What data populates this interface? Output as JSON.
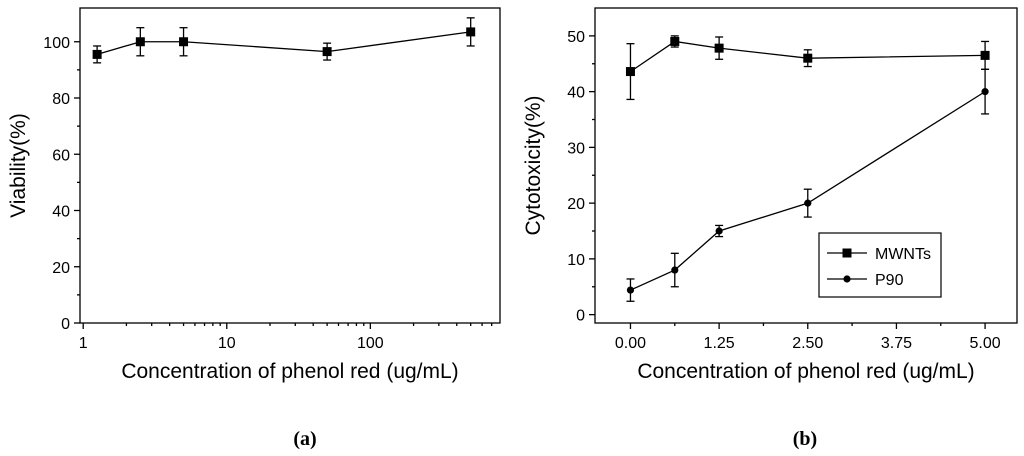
{
  "chart_data": [
    {
      "type": "line",
      "panel_label": "(a)",
      "xscale": "log",
      "xlabel": "Concentration of phenol red (ug/mL)",
      "ylabel": "Viability(%)",
      "xlim": [
        0.95,
        800
      ],
      "ylim": [
        0,
        112
      ],
      "x_ticks": [
        1,
        10,
        100
      ],
      "x_tick_labels": [
        "1",
        "10",
        "100"
      ],
      "y_ticks": [
        0,
        20,
        40,
        60,
        80,
        100
      ],
      "y_tick_labels": [
        "0",
        "20",
        "40",
        "60",
        "80",
        "100"
      ],
      "legend": null,
      "series": [
        {
          "name": "Viability",
          "marker": "square",
          "x": [
            1.25,
            2.5,
            5,
            50,
            500
          ],
          "values": [
            95.5,
            100,
            100,
            96.5,
            103.5
          ],
          "error": [
            3,
            5,
            5,
            3,
            5
          ]
        }
      ]
    },
    {
      "type": "line",
      "panel_label": "(b)",
      "xscale": "linear",
      "xlabel": "Concentration of phenol red (ug/mL)",
      "ylabel": "Cytotoxicity(%)",
      "xlim": [
        -0.5,
        5.45
      ],
      "ylim": [
        -1.5,
        55
      ],
      "x_ticks": [
        0,
        1.25,
        2.5,
        3.75,
        5
      ],
      "x_tick_labels": [
        "0.00",
        "1.25",
        "2.50",
        "3.75",
        "5.00"
      ],
      "y_ticks": [
        0,
        10,
        20,
        30,
        40,
        50
      ],
      "y_tick_labels": [
        "0",
        "10",
        "20",
        "30",
        "40",
        "50"
      ],
      "legend": "middle-right",
      "series": [
        {
          "name": "MWNTs",
          "marker": "square",
          "x": [
            0,
            0.625,
            1.25,
            2.5,
            5
          ],
          "values": [
            43.6,
            49,
            47.8,
            46,
            46.5
          ],
          "error": [
            5,
            1,
            2,
            1.5,
            2.5
          ]
        },
        {
          "name": "P90",
          "marker": "circle",
          "x": [
            0,
            0.625,
            1.25,
            2.5,
            5
          ],
          "values": [
            4.4,
            8,
            15,
            20,
            40
          ],
          "error": [
            2,
            3,
            1,
            2.5,
            4
          ]
        }
      ]
    }
  ]
}
